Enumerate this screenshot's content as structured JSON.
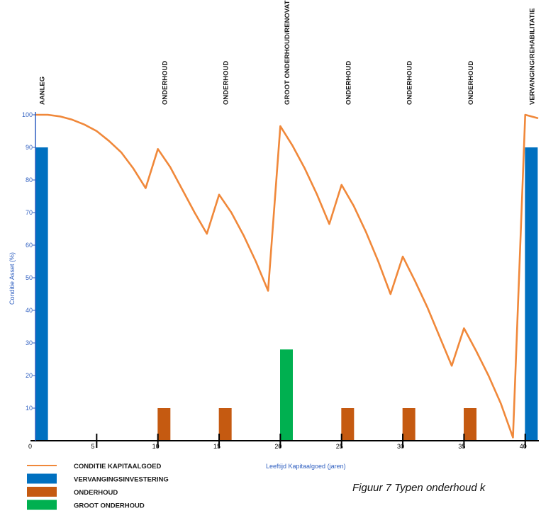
{
  "chart_data": {
    "type": "bar+line",
    "xlabel": "Leeftijd Kapitaalgoed (jaren)",
    "ylabel": "Conditie Asset (%)",
    "xlim": [
      0,
      41
    ],
    "ylim": [
      0,
      100
    ],
    "x_ticks": [
      0,
      5,
      10,
      15,
      20,
      25,
      30,
      35,
      40
    ],
    "y_ticks": [
      10,
      20,
      30,
      40,
      50,
      60,
      70,
      80,
      90,
      100
    ],
    "line_series": {
      "name": "CONDITIE KAPITAALGOED",
      "color": "#F0883A",
      "x": [
        0,
        1,
        2,
        3,
        4,
        5,
        6,
        7,
        8,
        9,
        10,
        11,
        12,
        13,
        14,
        15,
        16,
        17,
        18,
        19,
        20,
        21,
        22,
        23,
        24,
        25,
        26,
        27,
        28,
        29,
        30,
        31,
        32,
        33,
        34,
        35,
        36,
        37,
        38,
        39,
        40,
        41
      ],
      "y": [
        100,
        100,
        99.5,
        98.5,
        97,
        95,
        92,
        88.5,
        83.5,
        77.5,
        89.5,
        84,
        77,
        70,
        63.5,
        75.5,
        70,
        63,
        55,
        46,
        96.5,
        90.5,
        83.5,
        75.5,
        66.5,
        78.5,
        72,
        64,
        55,
        45,
        56.5,
        49,
        41,
        32,
        23,
        34.5,
        27.5,
        20,
        11.5,
        1,
        100,
        99
      ]
    },
    "bar_series": [
      {
        "name": "VERVANGINGSINVESTERING",
        "color": "#0070C0",
        "x": [
          0.5,
          40.5
        ],
        "values": [
          90,
          90
        ]
      },
      {
        "name": "ONDERHOUD",
        "color": "#C55A11",
        "x": [
          10.5,
          15.5,
          25.5,
          30.5,
          35.5
        ],
        "values": [
          10,
          10,
          10,
          10,
          10
        ]
      },
      {
        "name": "GROOT ONDERHOUD",
        "color": "#00B050",
        "x": [
          20.5
        ],
        "values": [
          28
        ]
      }
    ],
    "annotations": [
      {
        "text": "AANLEG",
        "x": 0.5
      },
      {
        "text": "ONDERHOUD",
        "x": 10.5
      },
      {
        "text": "ONDERHOUD",
        "x": 15.5
      },
      {
        "text": "GROOT ONDERHOUD/RENOVATIE",
        "x": 20.5
      },
      {
        "text": "ONDERHOUD",
        "x": 25.5
      },
      {
        "text": "ONDERHOUD",
        "x": 30.5
      },
      {
        "text": "ONDERHOUD",
        "x": 35.5
      },
      {
        "text": "VERVANGING/REHABILITATIE",
        "x": 40.5
      }
    ],
    "legend": {
      "placement": "bottom-left",
      "items": [
        {
          "label": "CONDITIE KAPITAALGOED",
          "kind": "line",
          "color": "#F0883A"
        },
        {
          "label": "VERVANGINGSINVESTERING",
          "kind": "box",
          "color": "#0070C0"
        },
        {
          "label": "ONDERHOUD",
          "kind": "box",
          "color": "#C55A11"
        },
        {
          "label": "GROOT ONDERHOUD",
          "kind": "box",
          "color": "#00B050"
        }
      ]
    },
    "axis_color": "#2F5FC0",
    "grid": false
  },
  "caption": "Figuur 7 Typen onderhoud k"
}
